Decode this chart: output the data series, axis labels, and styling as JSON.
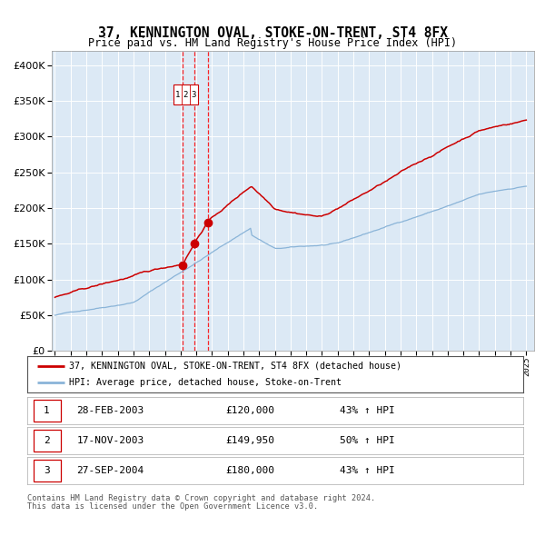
{
  "title": "37, KENNINGTON OVAL, STOKE-ON-TRENT, ST4 8FX",
  "subtitle": "Price paid vs. HM Land Registry's House Price Index (HPI)",
  "background_color": "#ffffff",
  "plot_bg_color": "#dce9f5",
  "hpi_color": "#8ab4d8",
  "price_color": "#cc0000",
  "marker_color": "#cc0000",
  "ylim": [
    0,
    420000
  ],
  "yticks": [
    0,
    50000,
    100000,
    150000,
    200000,
    250000,
    300000,
    350000,
    400000
  ],
  "transactions": [
    {
      "label": "1",
      "date": "28-FEB-2003",
      "price": 120000,
      "price_str": "£120,000",
      "pct": "43% ↑ HPI",
      "year": 2003.12
    },
    {
      "label": "2",
      "date": "17-NOV-2003",
      "price": 149950,
      "price_str": "£149,950",
      "pct": "50% ↑ HPI",
      "year": 2003.88
    },
    {
      "label": "3",
      "date": "27-SEP-2004",
      "price": 180000,
      "price_str": "£180,000",
      "pct": "43% ↑ HPI",
      "year": 2004.73
    }
  ],
  "legend_line1": "37, KENNINGTON OVAL, STOKE-ON-TRENT, ST4 8FX (detached house)",
  "legend_line2": "HPI: Average price, detached house, Stoke-on-Trent",
  "footnote1": "Contains HM Land Registry data © Crown copyright and database right 2024.",
  "footnote2": "This data is licensed under the Open Government Licence v3.0."
}
